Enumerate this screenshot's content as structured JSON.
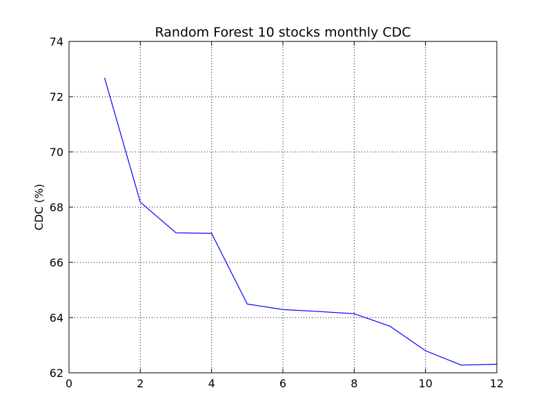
{
  "chart_data": {
    "type": "line",
    "title": "Random Forest 10 stocks monthly CDC",
    "xlabel": "",
    "ylabel": "CDC (%)",
    "xlim": [
      0,
      12
    ],
    "ylim": [
      62,
      74
    ],
    "xticks": [
      "0",
      "2",
      "4",
      "6",
      "8",
      "10",
      "12"
    ],
    "yticks": [
      "62",
      "64",
      "66",
      "68",
      "70",
      "72",
      "74"
    ],
    "grid": true,
    "line_color": "#0000ff",
    "x": [
      1,
      2,
      3,
      4,
      5,
      6,
      7,
      8,
      9,
      10,
      11,
      12
    ],
    "series": [
      {
        "values": [
          72.67,
          68.18,
          67.07,
          67.05,
          64.49,
          64.29,
          64.22,
          64.14,
          63.69,
          62.8,
          62.28,
          62.31
        ]
      }
    ]
  }
}
